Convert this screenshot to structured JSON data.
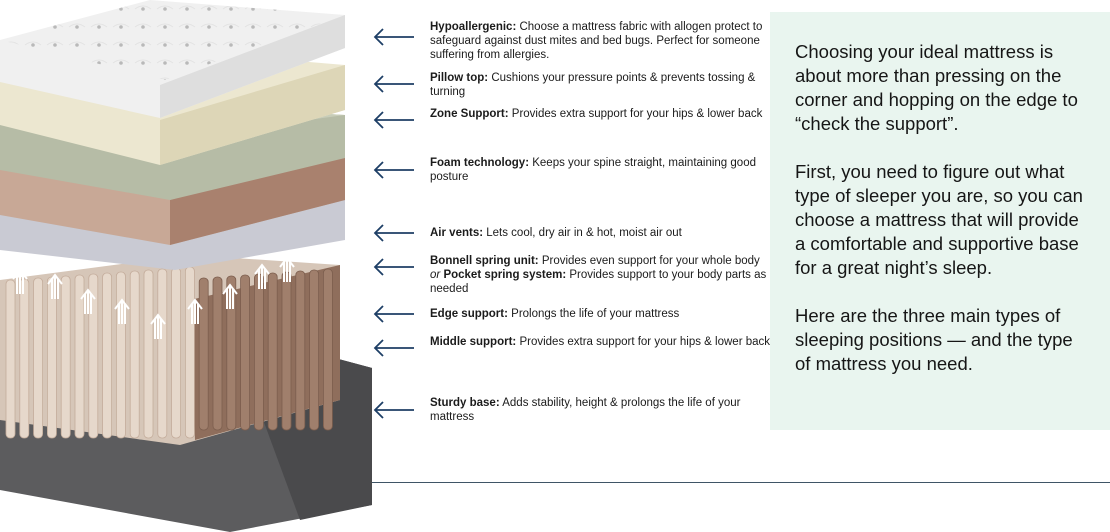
{
  "labels": [
    {
      "title": "Hypoallergenic:",
      "text": "Choose a mattress fabric with allogen protect to safeguard against dust mites and bed bugs. Perfect for someone suffering from allergies."
    },
    {
      "title": "Pillow top:",
      "text": "Cushions your pressure points & prevents tossing & turning"
    },
    {
      "title": "Zone Support:",
      "text": "Provides extra support for your hips & lower back"
    },
    {
      "title": "Foam technology:",
      "text": "Keeps your spine straight, maintaining good posture"
    },
    {
      "title": "Air vents:",
      "text": "Lets cool, dry air in & hot, moist air out"
    },
    {
      "title": "Bonnell spring unit:",
      "text": "Provides even support for your whole body",
      "or": "or",
      "title2": "Pocket spring system:",
      "text2": "Provides support to your body parts as needed"
    },
    {
      "title": "Edge support:",
      "text": "Prolongs the life of your mattress"
    },
    {
      "title": "Middle support:",
      "text": "Provides extra support for your hips & lower back"
    },
    {
      "title": "Sturdy base:",
      "text": "Adds stability, height & prolongs the life of your mattress"
    }
  ],
  "panel": {
    "p1": "Choosing your ideal mattress is about more than pressing on the corner and hopping on the edge to “check the support”.",
    "p2": "First, you need to figure out what type of sleeper you are, so you can choose a mattress that will provide a comfortable and supportive base for a great night’s sleep.",
    "p3": "Here are the three main types of sleeping positions — and the type of mattress you need."
  },
  "icons": {
    "arrow": "arrow-left-icon",
    "vent_arrow": "arrow-up-icon"
  },
  "colors": {
    "arrow": "#1e3f66",
    "panel_bg": "#e9f5ef",
    "divider": "#3f5566"
  }
}
